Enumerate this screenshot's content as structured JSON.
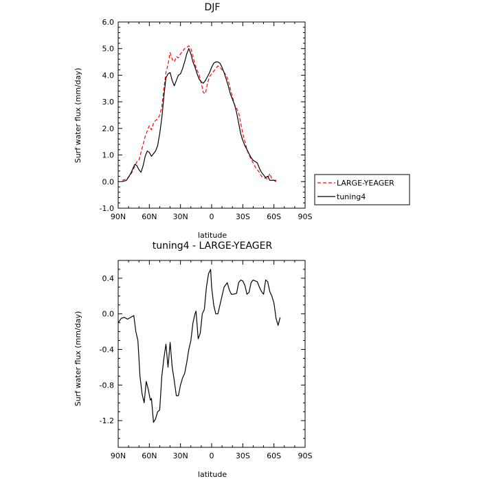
{
  "chart_data": [
    {
      "type": "line",
      "title": "DJF",
      "xlabel": "latitude",
      "ylabel": "Surf water flux (mm/day)",
      "xlim": [
        90,
        -90
      ],
      "ylim": [
        -1.0,
        6.0
      ],
      "xticks": [
        90,
        60,
        30,
        0,
        -30,
        -60,
        -90
      ],
      "xtick_labels": [
        "90N",
        "60N",
        "30N",
        "0",
        "30S",
        "60S",
        "90S"
      ],
      "yticks": [
        -1.0,
        0.0,
        1.0,
        2.0,
        3.0,
        4.0,
        5.0,
        6.0
      ],
      "ytick_labels": [
        "-1.0",
        "0.0",
        "1.0",
        "2.0",
        "3.0",
        "4.0",
        "5.0",
        "6.0"
      ],
      "legend_position": "outside-right",
      "series": [
        {
          "name": "LARGE-YEAGER",
          "color": "#ff0000",
          "dash": "dashed",
          "points": [
            [
              86,
              0.05
            ],
            [
              82,
              0.1
            ],
            [
              78,
              0.25
            ],
            [
              75,
              0.5
            ],
            [
              72,
              0.75
            ],
            [
              70,
              0.8
            ],
            [
              68,
              1.1
            ],
            [
              66,
              1.4
            ],
            [
              64,
              1.7
            ],
            [
              62,
              1.9
            ],
            [
              60,
              2.1
            ],
            [
              58,
              1.95
            ],
            [
              56,
              2.2
            ],
            [
              54,
              2.3
            ],
            [
              52,
              2.35
            ],
            [
              50,
              2.5
            ],
            [
              48,
              2.8
            ],
            [
              46,
              3.5
            ],
            [
              44,
              4.1
            ],
            [
              42,
              4.4
            ],
            [
              40,
              4.85
            ],
            [
              38,
              4.6
            ],
            [
              36,
              4.5
            ],
            [
              34,
              4.7
            ],
            [
              32,
              4.65
            ],
            [
              30,
              4.8
            ],
            [
              28,
              4.9
            ],
            [
              26,
              5.0
            ],
            [
              24,
              5.05
            ],
            [
              22,
              5.1
            ],
            [
              20,
              5.0
            ],
            [
              18,
              4.7
            ],
            [
              16,
              4.4
            ],
            [
              14,
              4.2
            ],
            [
              12,
              4.0
            ],
            [
              10,
              3.7
            ],
            [
              8,
              3.35
            ],
            [
              6,
              3.3
            ],
            [
              4,
              3.7
            ],
            [
              2,
              3.95
            ],
            [
              0,
              4.05
            ],
            [
              -2,
              4.15
            ],
            [
              -4,
              4.25
            ],
            [
              -6,
              4.35
            ],
            [
              -8,
              4.3
            ],
            [
              -10,
              4.2
            ],
            [
              -12,
              4.1
            ],
            [
              -14,
              4.0
            ],
            [
              -16,
              3.8
            ],
            [
              -18,
              3.5
            ],
            [
              -20,
              3.2
            ],
            [
              -22,
              2.9
            ],
            [
              -24,
              2.75
            ],
            [
              -26,
              2.6
            ],
            [
              -28,
              2.2
            ],
            [
              -30,
              1.8
            ],
            [
              -32,
              1.5
            ],
            [
              -34,
              1.2
            ],
            [
              -36,
              1.0
            ],
            [
              -38,
              0.85
            ],
            [
              -40,
              0.7
            ],
            [
              -42,
              0.55
            ],
            [
              -44,
              0.45
            ],
            [
              -46,
              0.35
            ],
            [
              -48,
              0.2
            ],
            [
              -50,
              0.15
            ],
            [
              -52,
              0.12
            ],
            [
              -54,
              0.1
            ],
            [
              -56,
              0.3
            ],
            [
              -58,
              0.1
            ],
            [
              -60,
              0.05
            ],
            [
              -62,
              0.05
            ],
            [
              -64,
              0.0
            ]
          ]
        },
        {
          "name": "tuning4",
          "color": "#000000",
          "dash": "solid",
          "points": [
            [
              86,
              0.0
            ],
            [
              82,
              0.05
            ],
            [
              78,
              0.3
            ],
            [
              74,
              0.65
            ],
            [
              72,
              0.6
            ],
            [
              70,
              0.45
            ],
            [
              68,
              0.35
            ],
            [
              66,
              0.6
            ],
            [
              64,
              0.95
            ],
            [
              62,
              1.15
            ],
            [
              60,
              1.1
            ],
            [
              58,
              0.95
            ],
            [
              56,
              1.05
            ],
            [
              54,
              1.15
            ],
            [
              52,
              1.35
            ],
            [
              50,
              1.8
            ],
            [
              48,
              2.4
            ],
            [
              46,
              3.2
            ],
            [
              44,
              3.9
            ],
            [
              42,
              4.05
            ],
            [
              40,
              4.1
            ],
            [
              38,
              3.8
            ],
            [
              36,
              3.6
            ],
            [
              34,
              3.8
            ],
            [
              32,
              4.0
            ],
            [
              30,
              4.05
            ],
            [
              28,
              4.25
            ],
            [
              26,
              4.5
            ],
            [
              24,
              4.8
            ],
            [
              22,
              5.0
            ],
            [
              20,
              4.8
            ],
            [
              18,
              4.5
            ],
            [
              16,
              4.3
            ],
            [
              14,
              4.05
            ],
            [
              12,
              3.85
            ],
            [
              10,
              3.75
            ],
            [
              8,
              3.7
            ],
            [
              6,
              3.8
            ],
            [
              4,
              3.95
            ],
            [
              2,
              4.1
            ],
            [
              0,
              4.3
            ],
            [
              -2,
              4.45
            ],
            [
              -4,
              4.5
            ],
            [
              -6,
              4.5
            ],
            [
              -8,
              4.45
            ],
            [
              -10,
              4.3
            ],
            [
              -12,
              4.1
            ],
            [
              -14,
              3.85
            ],
            [
              -16,
              3.6
            ],
            [
              -18,
              3.3
            ],
            [
              -20,
              3.1
            ],
            [
              -22,
              2.9
            ],
            [
              -24,
              2.6
            ],
            [
              -26,
              2.2
            ],
            [
              -28,
              1.8
            ],
            [
              -30,
              1.55
            ],
            [
              -32,
              1.35
            ],
            [
              -34,
              1.2
            ],
            [
              -36,
              1.05
            ],
            [
              -38,
              0.9
            ],
            [
              -40,
              0.8
            ],
            [
              -42,
              0.75
            ],
            [
              -44,
              0.7
            ],
            [
              -46,
              0.5
            ],
            [
              -48,
              0.35
            ],
            [
              -50,
              0.25
            ],
            [
              -52,
              0.15
            ],
            [
              -54,
              0.2
            ],
            [
              -56,
              0.05
            ],
            [
              -58,
              0.05
            ],
            [
              -60,
              0.05
            ],
            [
              -62,
              0.0
            ]
          ]
        }
      ]
    },
    {
      "type": "line",
      "title": "tuning4 - LARGE-YEAGER",
      "xlabel": "latitude",
      "ylabel": "Surf water flux (mm/day)",
      "xlim": [
        90,
        -90
      ],
      "ylim": [
        -1.5,
        0.6
      ],
      "xticks": [
        90,
        60,
        30,
        0,
        -30,
        -60,
        -90
      ],
      "xtick_labels": [
        "90N",
        "60N",
        "30N",
        "0",
        "30S",
        "60S",
        "90S"
      ],
      "yticks": [
        -1.2,
        -0.8,
        -0.4,
        0.0,
        0.4
      ],
      "ytick_labels": [
        "-1.2",
        "-0.8",
        "-0.4",
        "0.0",
        "0.4"
      ],
      "series": [
        {
          "name": "tuning4 - LARGE-YEAGER",
          "color": "#000000",
          "dash": "solid",
          "points": [
            [
              90,
              -0.1
            ],
            [
              87,
              -0.05
            ],
            [
              84,
              -0.04
            ],
            [
              81,
              -0.06
            ],
            [
              78,
              -0.04
            ],
            [
              75,
              -0.02
            ],
            [
              73,
              -0.2
            ],
            [
              71,
              -0.3
            ],
            [
              69,
              -0.7
            ],
            [
              67,
              -0.9
            ],
            [
              65,
              -1.0
            ],
            [
              63,
              -0.76
            ],
            [
              61,
              -0.85
            ],
            [
              59,
              -0.97
            ],
            [
              58,
              -0.95
            ],
            [
              56,
              -1.22
            ],
            [
              54,
              -1.18
            ],
            [
              52,
              -1.1
            ],
            [
              50,
              -1.08
            ],
            [
              48,
              -0.7
            ],
            [
              46,
              -0.5
            ],
            [
              44,
              -0.34
            ],
            [
              42,
              -0.6
            ],
            [
              40,
              -0.32
            ],
            [
              38,
              -0.6
            ],
            [
              36,
              -0.75
            ],
            [
              34,
              -0.92
            ],
            [
              32,
              -0.92
            ],
            [
              30,
              -0.8
            ],
            [
              28,
              -0.72
            ],
            [
              26,
              -0.67
            ],
            [
              24,
              -0.55
            ],
            [
              22,
              -0.4
            ],
            [
              20,
              -0.3
            ],
            [
              18,
              -0.1
            ],
            [
              16,
              0.0
            ],
            [
              15,
              0.03
            ],
            [
              13,
              -0.28
            ],
            [
              11,
              -0.22
            ],
            [
              9,
              0.0
            ],
            [
              7,
              0.05
            ],
            [
              5,
              0.3
            ],
            [
              3,
              0.45
            ],
            [
              1,
              0.5
            ],
            [
              0,
              0.3
            ],
            [
              -2,
              0.1
            ],
            [
              -4,
              0.0
            ],
            [
              -6,
              0.0
            ],
            [
              -8,
              0.1
            ],
            [
              -10,
              0.2
            ],
            [
              -12,
              0.3
            ],
            [
              -15,
              0.35
            ],
            [
              -17,
              0.27
            ],
            [
              -19,
              0.22
            ],
            [
              -21,
              0.22
            ],
            [
              -24,
              0.23
            ],
            [
              -26,
              0.35
            ],
            [
              -28,
              0.38
            ],
            [
              -30,
              0.37
            ],
            [
              -32,
              0.32
            ],
            [
              -34,
              0.22
            ],
            [
              -36,
              0.24
            ],
            [
              -38,
              0.35
            ],
            [
              -40,
              0.38
            ],
            [
              -42,
              0.37
            ],
            [
              -44,
              0.36
            ],
            [
              -46,
              0.3
            ],
            [
              -48,
              0.25
            ],
            [
              -50,
              0.22
            ],
            [
              -52,
              0.38
            ],
            [
              -54,
              0.36
            ],
            [
              -56,
              0.25
            ],
            [
              -58,
              0.2
            ],
            [
              -60,
              0.12
            ],
            [
              -62,
              -0.05
            ],
            [
              -64,
              -0.13
            ],
            [
              -66,
              -0.04
            ]
          ]
        }
      ]
    }
  ]
}
